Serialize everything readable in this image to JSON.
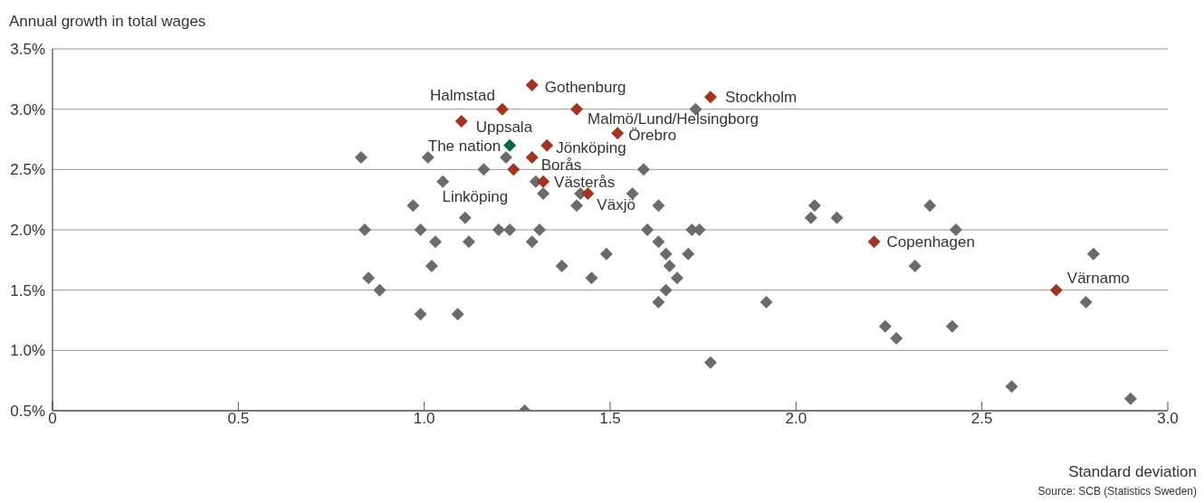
{
  "chart_data": {
    "type": "scatter",
    "ylabel": "Annual growth in total wages",
    "xlabel": "Standard deviation",
    "xlim": [
      0,
      3.0
    ],
    "xticks": [
      0,
      {
        "value": 0.5,
        "label": "0.5"
      },
      {
        "value": 1,
        "label": "1.0"
      },
      {
        "value": 1.5,
        "label": "1.5"
      },
      {
        "value": 2,
        "label": "2.0"
      },
      {
        "value": 2.5,
        "label": "2.5"
      },
      {
        "value": 3,
        "label": "3.0"
      }
    ],
    "ylim": [
      0.5,
      3.5
    ],
    "yticks": [
      {
        "value": 0.5,
        "label": "0.5%"
      },
      {
        "value": 1,
        "label": "1.0%"
      },
      {
        "value": 1.5,
        "label": "1.5%"
      },
      {
        "value": 2,
        "label": "2.0%"
      },
      {
        "value": 2.5,
        "label": "2.5%"
      },
      {
        "value": 3,
        "label": "3.0%"
      },
      {
        "value": 3.5,
        "label": "3.5%"
      }
    ],
    "grid": "y",
    "legend": false,
    "marker": "diamond",
    "series": [
      {
        "color": "#6b6b6b",
        "x": [
          0.83,
          1.01,
          1.22,
          1.05,
          1.16,
          1.3,
          1.32,
          1.42,
          1.56,
          1.59,
          1.73,
          0.97,
          1.11,
          1.41,
          1.63,
          0.84,
          0.99,
          1.2,
          1.23,
          1.31,
          1.6,
          1.72,
          1.74,
          1.03,
          1.12,
          1.29,
          1.63,
          1.49,
          1.65,
          1.71,
          1.02,
          1.37,
          1.66,
          0.85,
          1.45,
          1.68,
          0.88,
          1.65,
          1.63,
          0.99,
          1.09,
          1.77,
          1.27,
          2.05,
          2.04,
          2.11,
          2.36,
          2.43,
          2.32,
          2.8,
          1.92,
          2.78,
          2.24,
          2.27,
          2.42,
          2.58,
          2.9
        ],
        "values": [
          2.6,
          2.6,
          2.6,
          2.4,
          2.5,
          2.4,
          2.3,
          2.3,
          2.3,
          2.5,
          3.0,
          2.2,
          2.1,
          2.2,
          2.2,
          2.0,
          2.0,
          2.0,
          2.0,
          2.0,
          2.0,
          2.0,
          2.0,
          1.9,
          1.9,
          1.9,
          1.9,
          1.8,
          1.8,
          1.8,
          1.7,
          1.7,
          1.7,
          1.6,
          1.6,
          1.6,
          1.5,
          1.5,
          1.4,
          1.3,
          1.3,
          0.9,
          0.5,
          2.2,
          2.1,
          2.1,
          2.2,
          2.0,
          1.7,
          1.8,
          1.4,
          1.4,
          1.2,
          1.1,
          1.2,
          0.7,
          0.6
        ]
      },
      {
        "color": "#a3341f",
        "x": [
          1.29,
          1.21,
          1.77,
          1.41,
          1.1,
          1.52,
          1.33,
          1.29,
          1.24,
          1.32,
          1.44,
          2.21,
          2.7
        ],
        "values": [
          3.2,
          3.0,
          3.1,
          3.0,
          2.9,
          2.8,
          2.7,
          2.6,
          2.5,
          2.4,
          2.3,
          1.9,
          1.5
        ]
      },
      {
        "color": "#00693a",
        "x": [
          1.23
        ],
        "values": [
          2.7
        ]
      }
    ],
    "annotations": [
      {
        "text": "Gothenburg",
        "x": 1.29,
        "y": 3.2
      },
      {
        "text": "Halmstad",
        "x": 1.21,
        "y": 3.0
      },
      {
        "text": "Stockholm",
        "x": 1.77,
        "y": 3.1
      },
      {
        "text": "Malmö/Lund/Helsingborg",
        "x": 1.41,
        "y": 3.0
      },
      {
        "text": "Uppsala",
        "x": 1.1,
        "y": 2.9
      },
      {
        "text": "Örebro",
        "x": 1.52,
        "y": 2.8
      },
      {
        "text": "Jönköping",
        "x": 1.33,
        "y": 2.7
      },
      {
        "text": "Borås",
        "x": 1.29,
        "y": 2.6
      },
      {
        "text": "Linköping",
        "x": 1.24,
        "y": 2.5
      },
      {
        "text": "Västerås",
        "x": 1.32,
        "y": 2.4
      },
      {
        "text": "Växjö",
        "x": 1.44,
        "y": 2.3
      },
      {
        "text": "Copenhagen",
        "x": 2.21,
        "y": 1.9
      },
      {
        "text": "Värnamo",
        "x": 2.7,
        "y": 1.5
      },
      {
        "text": "The nation",
        "x": 1.23,
        "y": 2.7
      },
      "Source: SCB (Statistics Sweden)"
    ]
  }
}
